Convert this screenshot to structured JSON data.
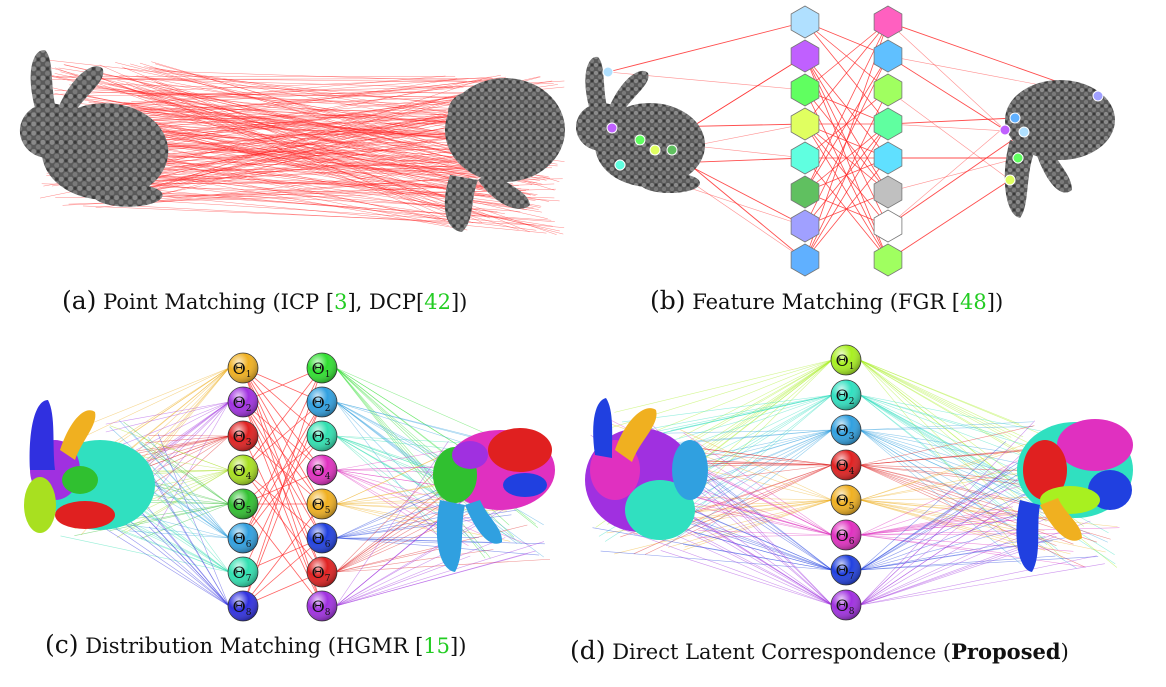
{
  "panels": [
    {
      "id": "a",
      "label": "(a)",
      "title": "Point Matching (ICP [",
      "refs": [
        "3",
        "42"
      ],
      "mid": "], DCP[",
      "end": "])"
    },
    {
      "id": "b",
      "label": "(b)",
      "title": "Feature Matching (FGR [",
      "refs": [
        "48"
      ],
      "end": "])"
    },
    {
      "id": "c",
      "label": "(c)",
      "title": "Distribution Matching (HGMR [",
      "refs": [
        "15"
      ],
      "end": "])"
    },
    {
      "id": "d",
      "label": "(d)",
      "title": "Direct Latent Correspondence (",
      "bold": "Proposed",
      "end": ")"
    }
  ],
  "theta_symbol": "Θ",
  "theta_subscripts": [
    "1",
    "2",
    "3",
    "4",
    "5",
    "6",
    "7",
    "8"
  ],
  "colors": {
    "point_line": "#ff2020",
    "bunny": "#555555",
    "ref_green": "#22cc22",
    "c_left": [
      "#f0b020",
      "#a030e0",
      "#e02020",
      "#a8e020",
      "#30c030",
      "#30a0e0",
      "#30e0b0",
      "#3030e0"
    ],
    "c_right": [
      "#30e030",
      "#30a0e0",
      "#30e0b0",
      "#e030c0",
      "#f0b020",
      "#2040e0",
      "#e02020",
      "#a030e0"
    ],
    "d_nodes": [
      "#a8f020",
      "#30e0c0",
      "#30a0e0",
      "#e02020",
      "#f0b020",
      "#e030c0",
      "#2040e0",
      "#a030e0"
    ]
  }
}
